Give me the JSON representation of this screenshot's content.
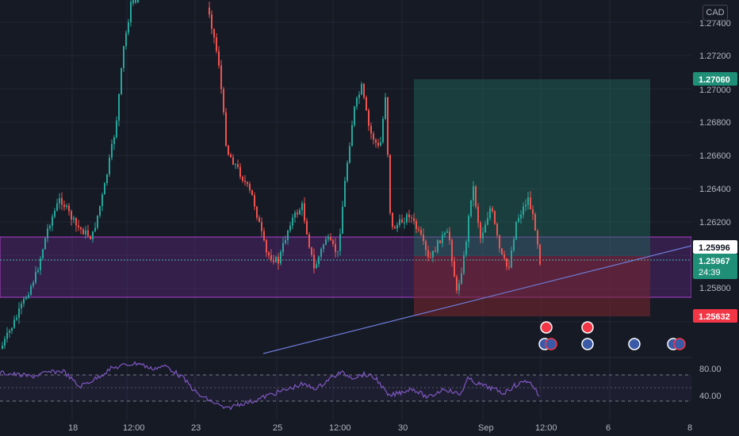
{
  "currency": "CAD",
  "chart_data": {
    "type": "candlestick",
    "price_axis": {
      "ticks": [
        "1.27400",
        "1.27200",
        "1.27000",
        "1.26800",
        "1.26600",
        "1.26400",
        "1.26200",
        "1.25800"
      ],
      "range": [
        1.255,
        1.2755
      ]
    },
    "time_axis": [
      "18",
      "12:00",
      "23",
      "25",
      "12:00",
      "30",
      "Sep",
      "12:00",
      "6",
      "8"
    ],
    "price_tags": {
      "target": {
        "value": "1.27060",
        "color": "#1f8f78"
      },
      "upper": {
        "value": "1.25996",
        "color": "#ffffff"
      },
      "last": {
        "value": "1.25967",
        "color": "#1f8f78"
      },
      "countdown": "24:39",
      "stop": {
        "value": "1.25632",
        "color": "#f23645"
      }
    },
    "zones": {
      "support_band": [
        1.2574,
        1.261
      ],
      "long_position": {
        "entry": 1.25996,
        "target": 1.2706,
        "stop": 1.25632
      }
    },
    "rsi": {
      "ticks": [
        "80.00",
        "40.00"
      ],
      "levels": [
        70,
        50,
        30
      ]
    },
    "colors": {
      "up": "#26a69a",
      "down": "#ef5350",
      "rsi": "#7e57c2",
      "band": "#9c27b0"
    }
  }
}
